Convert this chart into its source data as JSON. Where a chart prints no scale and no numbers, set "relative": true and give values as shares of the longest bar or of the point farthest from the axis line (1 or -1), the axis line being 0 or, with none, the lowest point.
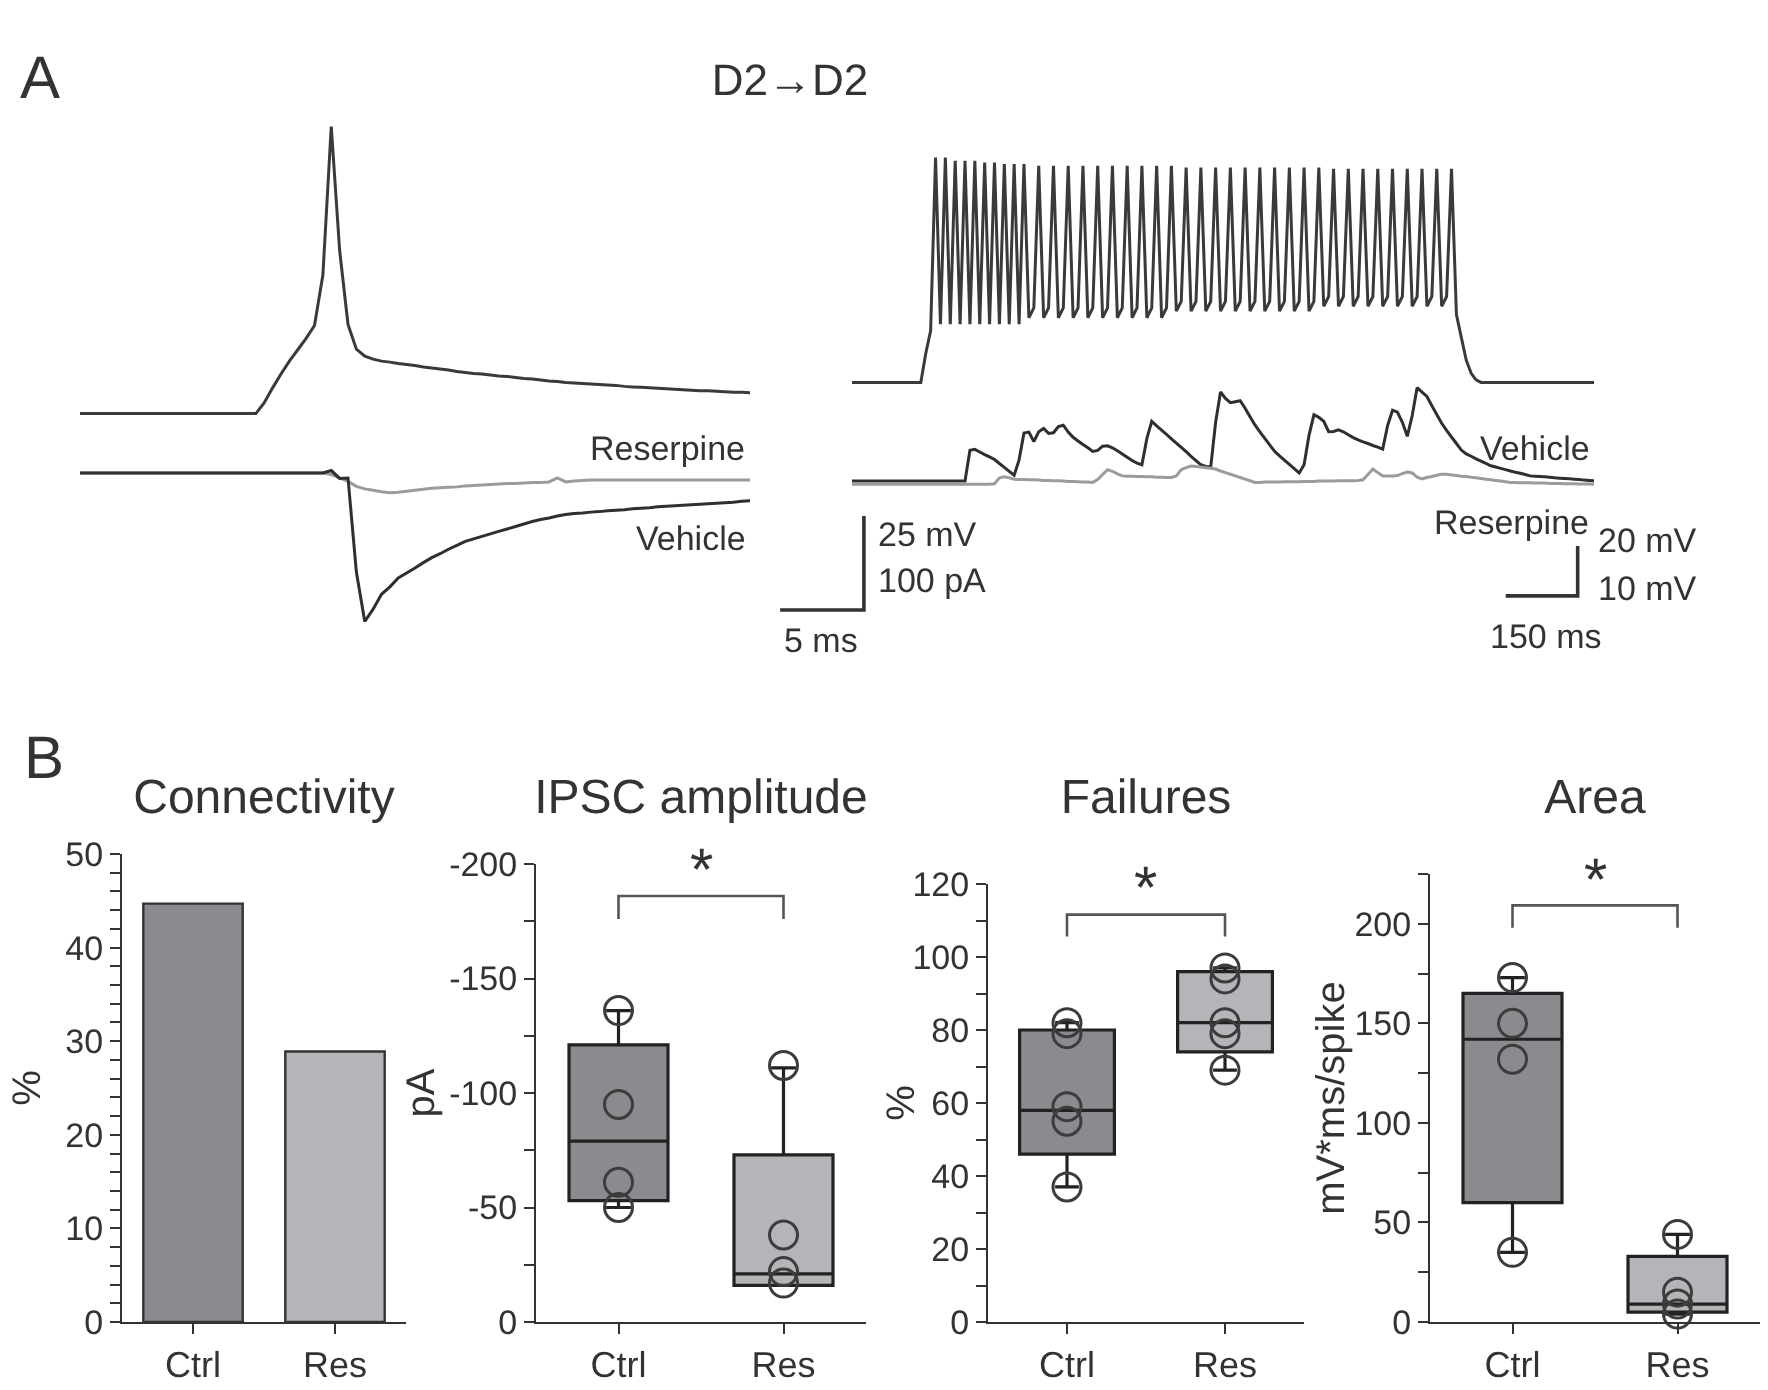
{
  "chart_data": [
    {
      "type": "line",
      "relative": true,
      "title": "D2→D2",
      "annotations": [
        "A",
        "25 mV",
        "100 pA",
        "5 ms"
      ],
      "categories": [
        null,
        null,
        null,
        null,
        null,
        null,
        null,
        null,
        null,
        null,
        null,
        null,
        null,
        null,
        null,
        null,
        null,
        null,
        null,
        null,
        null,
        null,
        null,
        null,
        null,
        null,
        null,
        null,
        null,
        null,
        null,
        null,
        null,
        null,
        null,
        null,
        null,
        null,
        null,
        null,
        null,
        null,
        null,
        null,
        null,
        null,
        null,
        null,
        null,
        null,
        null,
        null,
        null,
        null,
        null,
        null,
        null,
        null,
        null,
        null,
        null,
        null,
        null,
        null,
        null,
        null,
        null,
        null,
        null,
        null,
        null,
        null,
        null,
        null,
        null,
        null,
        null,
        null,
        null,
        null,
        null
      ],
      "series": [
        {
          "color": "#3a3a3a",
          "values": [
            0.42,
            0.42,
            0.42,
            0.42,
            0.42,
            0.42,
            0.42,
            0.42,
            0.42,
            0.42,
            0.42,
            0.42,
            0.42,
            0.42,
            0.42,
            0.42,
            0.42,
            0.42,
            0.42,
            0.42,
            0.42,
            0.42,
            0.442,
            0.472,
            0.5,
            0.526,
            0.549,
            0.572,
            0.598,
            0.7,
            1.0,
            0.75,
            0.6,
            0.55,
            0.536,
            0.53,
            0.526,
            0.524,
            0.521,
            0.519,
            0.517,
            0.514,
            0.512,
            0.51,
            0.508,
            0.505,
            0.503,
            0.501,
            0.5,
            0.498,
            0.496,
            0.495,
            0.493,
            0.491,
            0.49,
            0.488,
            0.486,
            0.485,
            0.483,
            0.482,
            0.481,
            0.48,
            0.479,
            0.478,
            0.477,
            0.475,
            0.474,
            0.473,
            0.472,
            0.471,
            0.47,
            0.469,
            0.468,
            0.467,
            0.466,
            0.466,
            0.465,
            0.464,
            0.463,
            0.463,
            0.462
          ]
        },
        {
          "name": "Reserpine",
          "color": "#9b9b9b",
          "values": [
            0.3,
            0.3,
            0.3,
            0.3,
            0.3,
            0.3,
            0.3,
            0.3,
            0.3,
            0.3,
            0.3,
            0.3,
            0.3,
            0.3,
            0.3,
            0.3,
            0.3,
            0.3,
            0.3,
            0.3,
            0.3,
            0.3,
            0.3,
            0.3,
            0.3,
            0.3,
            0.3,
            0.3,
            0.3,
            0.3,
            0.297,
            0.29,
            0.283,
            0.273,
            0.268,
            0.265,
            0.262,
            0.26,
            0.261,
            0.263,
            0.265,
            0.267,
            0.269,
            0.27,
            0.271,
            0.272,
            0.274,
            0.275,
            0.276,
            0.277,
            0.278,
            0.279,
            0.279,
            0.28,
            0.281,
            0.281,
            0.282,
            0.29,
            0.282,
            0.284,
            0.285,
            0.286,
            0.286,
            0.286,
            0.286,
            0.286,
            0.286,
            0.286,
            0.286,
            0.286,
            0.286,
            0.286,
            0.286,
            0.286,
            0.286,
            0.286,
            0.286,
            0.286,
            0.286,
            0.286,
            0.286
          ]
        },
        {
          "name": "Vehicle",
          "color": "#2f2f2f",
          "values": [
            0.3,
            0.3,
            0.3,
            0.3,
            0.3,
            0.3,
            0.3,
            0.3,
            0.3,
            0.3,
            0.3,
            0.3,
            0.3,
            0.3,
            0.3,
            0.3,
            0.3,
            0.3,
            0.3,
            0.3,
            0.3,
            0.3,
            0.3,
            0.3,
            0.3,
            0.3,
            0.3,
            0.3,
            0.3,
            0.3,
            0.305,
            0.289,
            0.29,
            0.1,
            0,
            0.025,
            0.055,
            0.07,
            0.088,
            0.098,
            0.108,
            0.119,
            0.129,
            0.137,
            0.146,
            0.154,
            0.162,
            0.167,
            0.172,
            0.177,
            0.182,
            0.187,
            0.192,
            0.197,
            0.202,
            0.206,
            0.209,
            0.213,
            0.216,
            0.218,
            0.219,
            0.221,
            0.222,
            0.224,
            0.225,
            0.226,
            0.228,
            0.229,
            0.23,
            0.232,
            0.233,
            0.234,
            0.235,
            0.236,
            0.237,
            0.238,
            0.239,
            0.24,
            0.241,
            0.243,
            0.244
          ]
        }
      ]
    },
    {
      "type": "line",
      "relative": true,
      "annotations": [
        "20 mV",
        "10 mV",
        "150 ms"
      ],
      "categories": [
        null,
        null,
        null,
        null,
        null,
        null,
        null,
        null,
        null,
        null,
        null,
        null,
        null,
        null,
        null,
        null,
        null,
        null,
        null,
        null,
        null,
        null,
        null,
        null,
        null,
        null,
        null,
        null,
        null,
        null,
        null,
        null,
        null,
        null,
        null,
        null,
        null,
        null,
        null,
        null,
        null,
        null,
        null,
        null,
        null,
        null,
        null,
        null,
        null,
        null,
        null,
        null,
        null,
        null,
        null,
        null,
        null,
        null,
        null,
        null,
        null,
        null,
        null,
        null,
        null,
        null,
        null,
        null,
        null,
        null,
        null,
        null,
        null,
        null,
        null,
        null,
        null,
        null,
        null,
        null,
        null,
        null,
        null,
        null,
        null,
        null,
        null,
        null,
        null,
        null,
        null,
        null,
        null,
        null,
        null,
        null,
        null,
        null,
        null,
        null,
        null,
        null,
        null,
        null,
        null,
        null,
        null,
        null,
        null,
        null,
        null,
        null,
        null,
        null,
        null,
        null,
        null,
        null,
        null,
        null,
        null,
        null,
        null,
        null,
        null,
        null,
        null,
        null,
        null,
        null,
        null,
        null,
        null,
        null,
        null,
        null,
        null,
        null,
        null,
        null,
        null,
        null,
        null,
        null,
        null,
        null,
        null,
        null,
        null,
        null,
        null,
        null
      ],
      "series": [
        {
          "color": "#3a3a3a",
          "values": [
            0.312,
            0.312,
            0.312,
            0.312,
            0.312,
            0.312,
            0.312,
            0.312,
            0.312,
            0.312,
            0.312,
            0.312,
            0.312,
            0.312,
            0.312,
            0.4,
            0.47,
            1.0,
            0.49,
            1.0,
            0.49,
            0.99,
            0.49,
            0.99,
            0.49,
            0.99,
            0.49,
            0.985,
            0.49,
            0.985,
            0.49,
            0.98,
            0.49,
            0.98,
            0.49,
            0.98,
            0.51,
            0.54,
            0.975,
            0.51,
            0.54,
            0.975,
            0.51,
            0.54,
            0.975,
            0.51,
            0.54,
            0.975,
            0.51,
            0.54,
            0.975,
            0.51,
            0.54,
            0.975,
            0.51,
            0.54,
            0.975,
            0.51,
            0.54,
            0.975,
            0.51,
            0.54,
            0.975,
            0.51,
            0.54,
            0.975,
            0.53,
            0.56,
            0.97,
            0.53,
            0.56,
            0.97,
            0.53,
            0.56,
            0.97,
            0.53,
            0.56,
            0.97,
            0.53,
            0.56,
            0.97,
            0.53,
            0.56,
            0.97,
            0.53,
            0.56,
            0.97,
            0.53,
            0.56,
            0.97,
            0.53,
            0.56,
            0.97,
            0.53,
            0.56,
            0.97,
            0.545,
            0.575,
            0.966,
            0.545,
            0.575,
            0.966,
            0.545,
            0.575,
            0.966,
            0.545,
            0.575,
            0.966,
            0.545,
            0.575,
            0.966,
            0.545,
            0.575,
            0.966,
            0.545,
            0.575,
            0.966,
            0.545,
            0.575,
            0.966,
            0.545,
            0.575,
            0.966,
            0.52,
            0.45,
            0.38,
            0.34,
            0.32,
            0.312,
            0.312,
            0.312,
            0.312,
            0.312,
            0.312,
            0.312,
            0.312,
            0.312,
            0.312,
            0.312,
            0.312,
            0.312,
            0.312,
            0.312,
            0.312,
            0.312,
            0.312,
            0.312,
            0.312,
            0.312,
            0.312,
            0.312,
            0.312
          ]
        },
        {
          "name": "Vehicle",
          "color": "#2f2f2f",
          "values": [
            0.01,
            0.01,
            0.01,
            0.01,
            0.01,
            0.01,
            0.01,
            0.01,
            0.01,
            0.01,
            0.01,
            0.01,
            0.01,
            0.01,
            0.01,
            0.01,
            0.01,
            0.01,
            0.01,
            0.01,
            0.01,
            0.01,
            0.01,
            0.01,
            0.104,
            0.107,
            0.099,
            0.091,
            0.084,
            0.076,
            0.064,
            0.052,
            0.04,
            0.028,
            0.075,
            0.157,
            0.16,
            0.131,
            0.161,
            0.171,
            0.156,
            0.158,
            0.177,
            0.181,
            0.16,
            0.144,
            0.133,
            0.122,
            0.112,
            0.101,
            0.104,
            0.117,
            0.118,
            0.112,
            0.103,
            0.093,
            0.083,
            0.073,
            0.065,
            0.06,
            0.14,
            0.193,
            0.179,
            0.166,
            0.153,
            0.139,
            0.126,
            0.113,
            0.1,
            0.086,
            0.073,
            0.06,
            0.055,
            0.053,
            0.19,
            0.283,
            0.263,
            0.25,
            0.253,
            0.256,
            0.233,
            0.207,
            0.182,
            0.161,
            0.141,
            0.121,
            0.101,
            0.087,
            0.074,
            0.061,
            0.048,
            0.035,
            0.06,
            0.15,
            0.213,
            0.205,
            0.193,
            0.161,
            0.162,
            0.167,
            0.161,
            0.152,
            0.143,
            0.136,
            0.13,
            0.125,
            0.119,
            0.114,
            0.108,
            0.18,
            0.227,
            0.221,
            0.19,
            0.147,
            0.21,
            0.296,
            0.282,
            0.269,
            0.241,
            0.214,
            0.187,
            0.165,
            0.145,
            0.125,
            0.105,
            0.093,
            0.086,
            0.078,
            0.071,
            0.064,
            0.057,
            0.053,
            0.049,
            0.045,
            0.041,
            0.037,
            0.034,
            0.03,
            0.026,
            0.025,
            0.024,
            0.023,
            0.022,
            0.02,
            0.019,
            0.018,
            0.017,
            0.016,
            0.015,
            0.013,
            0.012,
            0.011
          ]
        },
        {
          "name": "Reserpine",
          "color": "#9b9b9b",
          "values": [
            0,
            0,
            0,
            0,
            0,
            0,
            0,
            0,
            0,
            0,
            0,
            0,
            0,
            0,
            0,
            0,
            0,
            0,
            0,
            0,
            0,
            0,
            0,
            0,
            0,
            0,
            0,
            0,
            0,
            0.002,
            0.02,
            0.023,
            0.02,
            0.016,
            0.015,
            0.015,
            0.014,
            0.014,
            0.013,
            0.012,
            0.012,
            0.011,
            0.011,
            0.01,
            0.009,
            0.009,
            0.008,
            0.007,
            0.007,
            0.006,
            0.015,
            0.03,
            0.045,
            0.04,
            0.032,
            0.026,
            0.025,
            0.025,
            0.024,
            0.024,
            0.023,
            0.023,
            0.022,
            0.022,
            0.021,
            0.021,
            0.026,
            0.045,
            0.051,
            0.056,
            0.055,
            0.053,
            0.051,
            0.049,
            0.047,
            0.041,
            0.036,
            0.031,
            0.026,
            0.021,
            0.016,
            0.011,
            0.006,
            0.006,
            0.007,
            0.007,
            0.007,
            0.007,
            0.008,
            0.008,
            0.008,
            0.008,
            0.009,
            0.009,
            0.009,
            0.01,
            0.01,
            0.01,
            0.01,
            0.011,
            0.011,
            0.011,
            0.011,
            0.012,
            0.014,
            0.03,
            0.047,
            0.036,
            0.026,
            0.026,
            0.026,
            0.027,
            0.033,
            0.038,
            0.035,
            0.022,
            0.017,
            0.021,
            0.024,
            0.028,
            0.031,
            0.031,
            0.029,
            0.027,
            0.025,
            0.024,
            0.022,
            0.02,
            0.018,
            0.016,
            0.014,
            0.012,
            0.01,
            0.008,
            0.006,
            0.006,
            0.005,
            0.005,
            0.005,
            0.004,
            0.004,
            0.004,
            0.003,
            0.003,
            0.003,
            0.002,
            0.002,
            0.002,
            0.001,
            0.001,
            0.001,
            0
          ]
        }
      ]
    },
    {
      "type": "bar",
      "title": "Connectivity",
      "ylabel": "%",
      "annotations": [
        "B"
      ],
      "categories": [
        "Ctrl",
        "Res"
      ],
      "values": [
        44.7,
        28.9
      ],
      "colors": [
        "#8a8b8f",
        "#b4b5b9"
      ],
      "ylim": [
        0,
        50
      ],
      "yticks": [
        0,
        {
          "value": 2,
          "label": null
        },
        {
          "value": 4,
          "label": null
        },
        {
          "value": 6,
          "label": null
        },
        {
          "value": 8,
          "label": null
        },
        10,
        {
          "value": 12,
          "label": null
        },
        {
          "value": 14,
          "label": null
        },
        {
          "value": 16,
          "label": null
        },
        {
          "value": 18,
          "label": null
        },
        20,
        {
          "value": 22,
          "label": null
        },
        {
          "value": 24,
          "label": null
        },
        {
          "value": 26,
          "label": null
        },
        {
          "value": 28,
          "label": null
        },
        30,
        {
          "value": 32,
          "label": null
        },
        {
          "value": 34,
          "label": null
        },
        {
          "value": 36,
          "label": null
        },
        {
          "value": 38,
          "label": null
        },
        40,
        {
          "value": 42,
          "label": null
        },
        {
          "value": 44,
          "label": null
        },
        {
          "value": 46,
          "label": null
        },
        {
          "value": 48,
          "label": null
        },
        50
      ]
    },
    {
      "type": "box",
      "title": "IPSC amplitude",
      "ylabel": "pA",
      "annotations": [
        "*"
      ],
      "categories": [
        "Ctrl",
        "Res"
      ],
      "ylim": [
        0,
        -200
      ],
      "marker": "circle",
      "yticks": [
        0,
        {
          "value": -25,
          "label": null
        },
        -50,
        {
          "value": -75,
          "label": null
        },
        -100,
        {
          "value": -125,
          "label": null
        },
        -150,
        {
          "value": -175,
          "label": null
        },
        -200
      ],
      "series": [
        {
          "type": "box",
          "colors": [
            "#8a8b8f",
            "#b4b5b9"
          ],
          "boxes": [
            {
              "low": -136,
              "q1": -121,
              "median": -79,
              "q3": -53,
              "high": -50
            },
            {
              "low": -111,
              "q1": -73,
              "median": -21,
              "q3": -16,
              "high": -16
            }
          ]
        },
        {
          "type": "scatter",
          "color": "#3c3c3c",
          "x": [
            "Ctrl",
            "Ctrl",
            "Ctrl",
            "Ctrl",
            "Res",
            "Res",
            "Res",
            "Res"
          ],
          "values": [
            -136,
            -95,
            -61,
            -50,
            -112,
            -38,
            -22,
            -17
          ]
        }
      ]
    },
    {
      "type": "box",
      "title": "Failures",
      "ylabel": "%",
      "annotations": [
        "*"
      ],
      "categories": [
        "Ctrl",
        "Res"
      ],
      "ylim": [
        0,
        120
      ],
      "marker": "circle",
      "yticks": [
        0,
        {
          "value": 10,
          "label": null
        },
        20,
        {
          "value": 30,
          "label": null
        },
        40,
        {
          "value": 50,
          "label": null
        },
        60,
        {
          "value": 70,
          "label": null
        },
        80,
        {
          "value": 90,
          "label": null
        },
        100,
        {
          "value": 110,
          "label": null
        },
        120
      ],
      "series": [
        {
          "type": "box",
          "colors": [
            "#8a8b8f",
            "#b4b5b9"
          ],
          "boxes": [
            {
              "low": 37,
              "q1": 46,
              "median": 58,
              "q3": 80,
              "high": 82
            },
            {
              "low": 69,
              "q1": 74,
              "median": 82,
              "q3": 96,
              "high": 97
            }
          ]
        },
        {
          "type": "scatter",
          "color": "#3c3c3c",
          "x": [
            "Ctrl",
            "Ctrl",
            "Ctrl",
            "Ctrl",
            "Ctrl",
            "Res",
            "Res",
            "Res",
            "Res",
            "Res"
          ],
          "values": [
            82,
            79,
            59,
            55,
            37,
            97,
            94,
            82,
            79,
            69
          ]
        }
      ]
    },
    {
      "type": "box",
      "title": "Area",
      "ylabel": "mV*ms/spike",
      "annotations": [
        "*"
      ],
      "categories": [
        "Ctrl",
        "Res"
      ],
      "ylim": [
        0,
        225
      ],
      "marker": "circle",
      "yticks": [
        0,
        {
          "value": 25,
          "label": null
        },
        50,
        {
          "value": 75,
          "label": null
        },
        100,
        {
          "value": 125,
          "label": null
        },
        150,
        {
          "value": 175,
          "label": null
        },
        200,
        {
          "value": 225,
          "label": null
        }
      ],
      "series": [
        {
          "type": "box",
          "colors": [
            "#8a8b8f",
            "#b4b5b9"
          ],
          "boxes": [
            {
              "low": 35,
              "q1": 60,
              "median": 142,
              "q3": 165,
              "high": 173
            },
            {
              "low": 4,
              "q1": 5,
              "median": 9,
              "q3": 33,
              "high": 44
            }
          ]
        },
        {
          "type": "scatter",
          "color": "#3c3c3c",
          "x": [
            "Ctrl",
            "Ctrl",
            "Ctrl",
            "Ctrl",
            "Res",
            "Res",
            "Res",
            "Res"
          ],
          "values": [
            173,
            150,
            132,
            35,
            44,
            15,
            9,
            4
          ]
        }
      ]
    }
  ]
}
